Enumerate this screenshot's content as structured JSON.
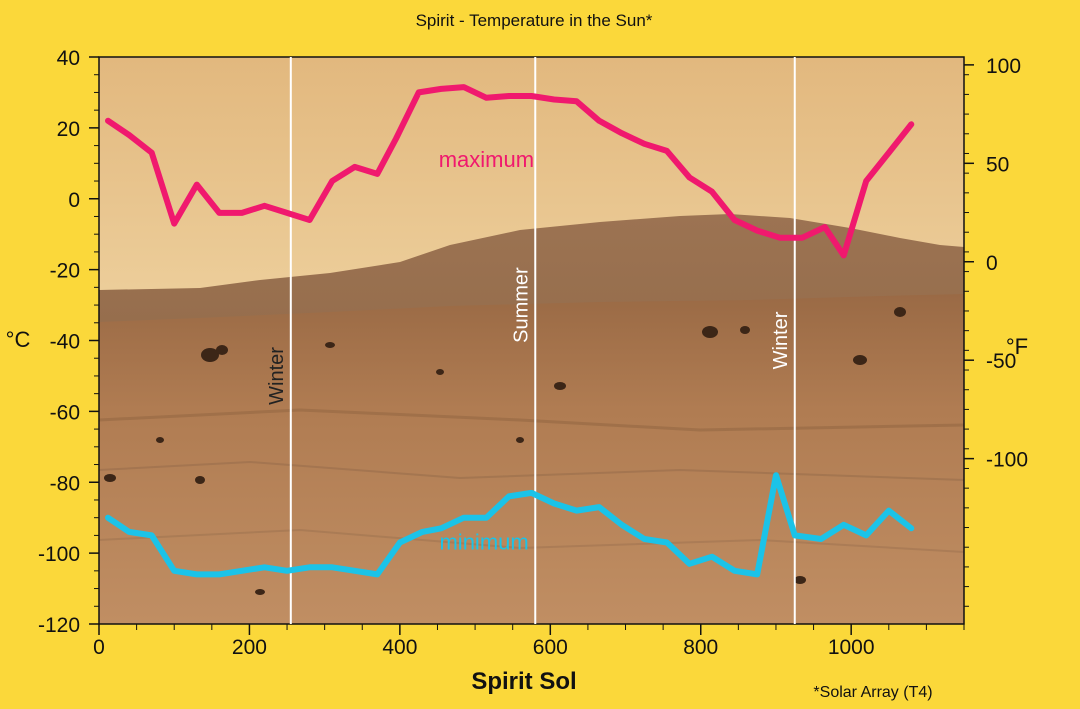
{
  "chart_data": {
    "type": "line",
    "title": "Spirit - Temperature in the Sun*",
    "xlabel": "Spirit Sol",
    "ylabel_left": "°C",
    "ylabel_right": "°F",
    "footnote": "*Solar Array (T4)",
    "xlim": [
      0,
      1150
    ],
    "ylim": [
      -120,
      40
    ],
    "x_ticks": [
      0,
      200,
      400,
      600,
      800,
      1000
    ],
    "y_ticks_left": [
      -120,
      -100,
      -80,
      -60,
      -40,
      -20,
      0,
      20,
      40
    ],
    "y_ticks_right": [
      -100,
      -50,
      0,
      50,
      100
    ],
    "grid": false,
    "background": "Mars surface panorama",
    "seasons": [
      {
        "label": "Winter",
        "sol": 255,
        "color": "#222222"
      },
      {
        "label": "Summer",
        "sol": 580,
        "color": "#ffffff"
      },
      {
        "label": "Winter",
        "sol": 925,
        "color": "#ffffff"
      }
    ],
    "series": [
      {
        "name": "maximum",
        "color": "#f0196e",
        "x": [
          12,
          40,
          70,
          100,
          130,
          160,
          190,
          220,
          250,
          280,
          310,
          340,
          370,
          395,
          425,
          455,
          485,
          515,
          545,
          575,
          605,
          635,
          665,
          695,
          725,
          755,
          785,
          815,
          845,
          875,
          905,
          935,
          965,
          990,
          1020,
          1050,
          1080
        ],
        "values": [
          22,
          18,
          13,
          -7,
          4,
          -4,
          -4,
          -2,
          -4,
          -6,
          5,
          9,
          7,
          17,
          30,
          31,
          31.5,
          28.5,
          29,
          29,
          28,
          27.5,
          22,
          18.5,
          15.5,
          13.5,
          6,
          2,
          -6,
          -9,
          -11,
          -11,
          -8,
          -16,
          5,
          13,
          21
        ]
      },
      {
        "name": "minimum",
        "color": "#1bc3e8",
        "x": [
          12,
          40,
          70,
          100,
          130,
          160,
          190,
          220,
          250,
          280,
          310,
          340,
          370,
          400,
          430,
          455,
          485,
          515,
          545,
          575,
          605,
          635,
          665,
          695,
          725,
          755,
          785,
          815,
          845,
          875,
          900,
          925,
          960,
          990,
          1020,
          1050,
          1080
        ],
        "values": [
          -90,
          -94,
          -95,
          -105,
          -106,
          -106,
          -105,
          -104,
          -105,
          -104,
          -104,
          -105,
          -106,
          -97,
          -94,
          -93,
          -90,
          -90,
          -84,
          -83,
          -86,
          -88,
          -87,
          -92,
          -96,
          -97,
          -103,
          -101,
          -105,
          -106,
          -78,
          -95,
          -96,
          -92,
          -95,
          -88,
          -93
        ]
      }
    ]
  }
}
